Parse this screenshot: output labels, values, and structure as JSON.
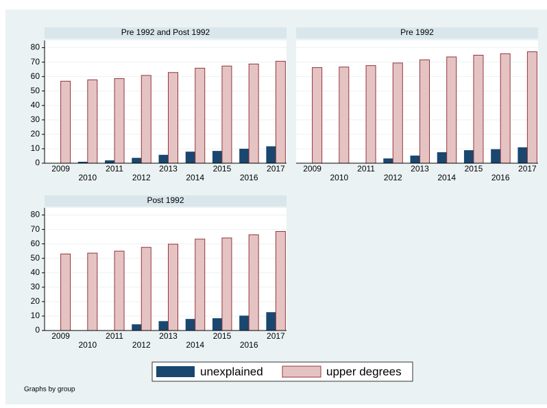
{
  "chart_data": [
    {
      "type": "bar",
      "title": "Pre 1992 and Post 1992",
      "categories": [
        "2009",
        "2010",
        "2011",
        "2012",
        "2013",
        "2014",
        "2015",
        "2016",
        "2017"
      ],
      "series": [
        {
          "name": "unexplained",
          "color": "#1a476f",
          "values": [
            0,
            1,
            2,
            3.7,
            5.8,
            8,
            8.5,
            10,
            11.7
          ]
        },
        {
          "name": "upper degrees",
          "color": "#e6c3c3",
          "values": [
            56.8,
            57.7,
            58.6,
            60.8,
            62.8,
            65.8,
            67.3,
            68.7,
            70.6
          ]
        }
      ],
      "ylim": [
        0,
        85
      ],
      "yticks": [
        0,
        10,
        20,
        30,
        40,
        50,
        60,
        70,
        80
      ],
      "grid": true
    },
    {
      "type": "bar",
      "title": "Pre 1992",
      "categories": [
        "2009",
        "2010",
        "2011",
        "2012",
        "2013",
        "2014",
        "2015",
        "2016",
        "2017"
      ],
      "series": [
        {
          "color": "#1a476f",
          "values": [
            0,
            0,
            0,
            3.3,
            5.3,
            7.6,
            9,
            9.7,
            11
          ]
        },
        {
          "color": "#e6c3c3",
          "values": [
            66.2,
            66.6,
            67.6,
            69.4,
            71.6,
            73.6,
            74.8,
            75.8,
            77.2
          ]
        }
      ],
      "ylim": [
        0,
        85
      ],
      "yticks": [
        0,
        10,
        20,
        30,
        40,
        50,
        60,
        70,
        80
      ],
      "grid": true
    },
    {
      "type": "bar",
      "title": "Post 1992",
      "categories": [
        "2009",
        "2010",
        "2011",
        "2012",
        "2013",
        "2014",
        "2015",
        "2016",
        "2017"
      ],
      "series": [
        {
          "color": "#1a476f",
          "values": [
            0,
            0,
            0,
            4.3,
            6.5,
            8,
            8.5,
            10.3,
            12.7
          ]
        },
        {
          "color": "#e6c3c3",
          "values": [
            53,
            53.6,
            55,
            57.6,
            59.8,
            63.3,
            64.1,
            66.3,
            68.6
          ]
        }
      ],
      "ylim": [
        0,
        85
      ],
      "yticks": [
        0,
        10,
        20,
        30,
        40,
        50,
        60,
        70,
        80
      ],
      "grid": true
    }
  ],
  "note": "Graphs by group"
}
